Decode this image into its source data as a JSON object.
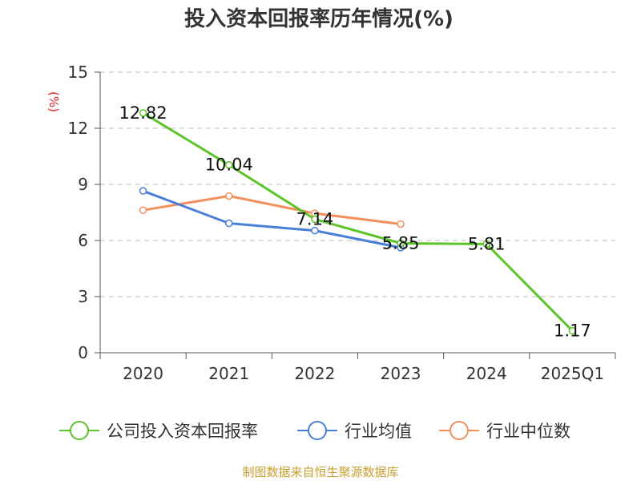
{
  "chart_data": {
    "type": "line",
    "title": "投入资本回报率历年情况(%)",
    "ylabel": "(%)",
    "xlabel": "",
    "categories": [
      "2020",
      "2021",
      "2022",
      "2023",
      "2024",
      "2025Q1"
    ],
    "ylim": [
      0,
      15
    ],
    "yticks": [
      0,
      3,
      6,
      9,
      12,
      15
    ],
    "grid": true,
    "legend_position": "bottom",
    "series": [
      {
        "name": "公司投入资本回报率",
        "color": "#5cc42a",
        "values": [
          12.82,
          10.04,
          7.14,
          5.85,
          5.81,
          1.17
        ],
        "labels": [
          "12.82",
          "10.04",
          "7.14",
          "5.85",
          "5.81",
          "1.17"
        ]
      },
      {
        "name": "行业均值",
        "color": "#4a7fd8",
        "values": [
          8.65,
          6.92,
          6.53,
          5.62,
          null,
          null
        ]
      },
      {
        "name": "行业中位数",
        "color": "#f28f5c",
        "values": [
          7.62,
          8.38,
          7.45,
          6.88,
          null,
          null
        ]
      }
    ]
  },
  "footer": {
    "source": "制图数据来自恒生聚源数据库"
  }
}
